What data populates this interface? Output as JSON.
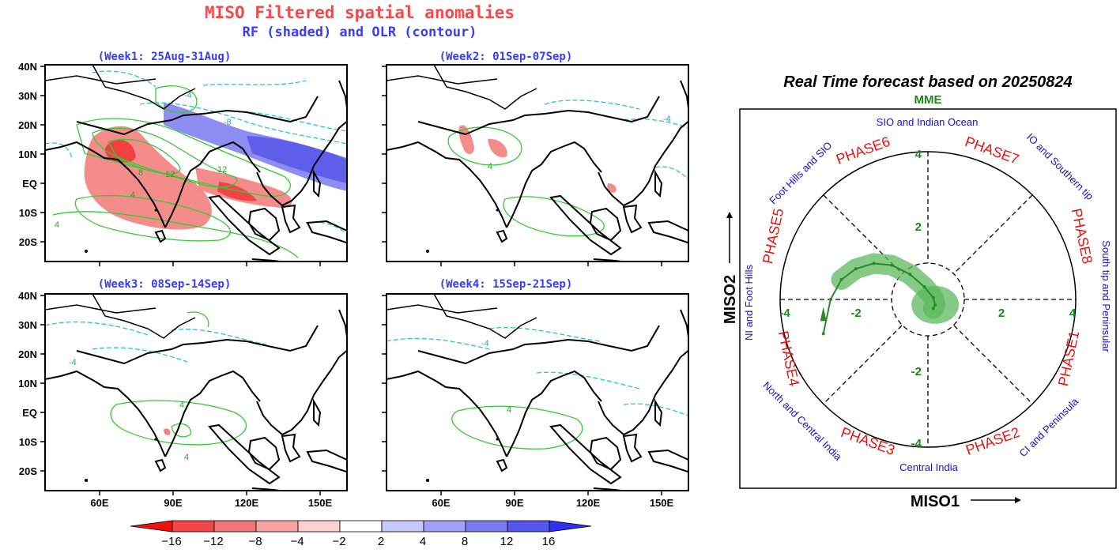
{
  "maps": {
    "title": "MISO Filtered spatial anomalies",
    "subtitle": "RF (shaded) and OLR (contour)",
    "panels": [
      {
        "label": "(Week1: 25Aug-31Aug)"
      },
      {
        "label": "(Week2: 01Sep-07Sep)"
      },
      {
        "label": "(Week3: 08Sep-14Sep)"
      },
      {
        "label": "(Week4: 15Sep-21Sep)"
      }
    ],
    "lat_labels": [
      "40N",
      "30N",
      "20N",
      "10N",
      "EQ",
      "10S",
      "20S"
    ],
    "lon_labels": [
      "60E",
      "90E",
      "120E",
      "150E"
    ],
    "colorbar": {
      "labels": [
        "−16",
        "−12",
        "−8",
        "−4",
        "−2",
        "2",
        "4",
        "8",
        "12",
        "16"
      ],
      "colors": [
        "#f01010",
        "#f24545",
        "#f47575",
        "#f7a3a3",
        "#fad0d0",
        "#ffffff",
        "#c8c8fa",
        "#a0a0f7",
        "#7a7af4",
        "#5555f0",
        "#3030f0"
      ]
    },
    "colors": {
      "rf_negative": "#f07a7a",
      "rf_positive": "#6f6fe8",
      "olr_negative": "#26c8c8",
      "olr_positive": "#33cc33"
    }
  },
  "phase_diagram": {
    "title": "Real Time forecast based on 20250824",
    "model": "MME",
    "xlabel": "MISO1",
    "ylabel": "MISO2",
    "phases": [
      "PHASE1",
      "PHASE2",
      "PHASE3",
      "PHASE4",
      "PHASE5",
      "PHASE6",
      "PHASE7",
      "PHASE8"
    ],
    "regions": [
      "South tip and Peninsular",
      "CI and Peninsula",
      "Central India",
      "North and Central India",
      "NI and Foot Hills",
      "Foot Hills and SIO",
      "SIO and Indian Ocean",
      "IO and Southern tip"
    ],
    "ticks_x": [
      "-4",
      "-2",
      "2",
      "4"
    ],
    "ticks_y": [
      "4",
      "2",
      "-2",
      "-4"
    ],
    "colors": {
      "trajectory": "#2a8a2a",
      "spread": "#5cb85c",
      "phase_label": "#ee1111",
      "region_label": "#1111dd",
      "tick": "#1a8a1a"
    }
  },
  "chart_data": {
    "type": "line",
    "title": "Real Time forecast based on 20250824",
    "xlabel": "MISO1",
    "ylabel": "MISO2",
    "xlim": [
      -4,
      4
    ],
    "ylim": [
      -4,
      4
    ],
    "series": [
      {
        "name": "MME",
        "x": [
          -2.9,
          -2.7,
          -2.4,
          -2.0,
          -1.5,
          -1.0,
          -0.5,
          -0.1,
          0.15,
          0.2,
          0.15
        ],
        "y": [
          -0.95,
          0.0,
          0.55,
          0.85,
          1.0,
          0.95,
          0.7,
          0.35,
          0.05,
          -0.15,
          -0.25
        ]
      }
    ]
  }
}
